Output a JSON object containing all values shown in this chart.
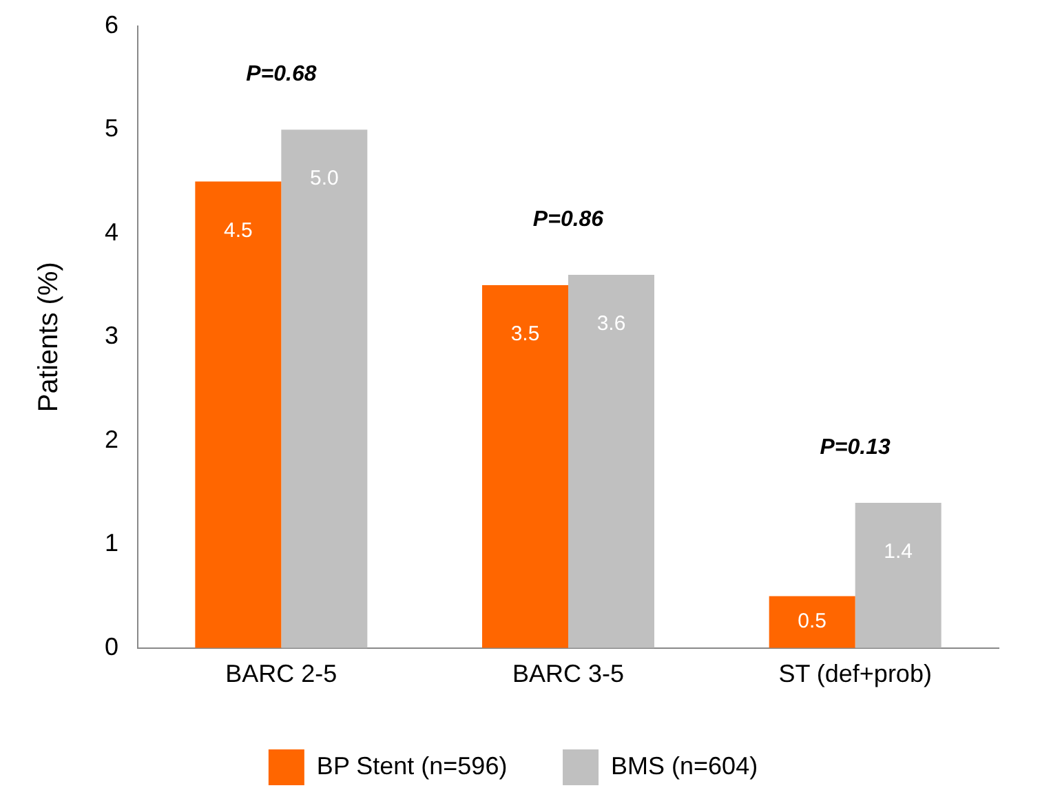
{
  "chart_data": {
    "type": "bar",
    "ylabel": "Patients (%)",
    "categories": [
      "BARC 2-5",
      "BARC 3-5",
      "ST (def+prob)"
    ],
    "series": [
      {
        "name": "BP Stent (n=596)",
        "color": "#ff6600",
        "values": [
          4.5,
          3.5,
          0.5
        ],
        "value_labels": [
          "4.5",
          "3.5",
          "0.5"
        ]
      },
      {
        "name": "BMS (n=604)",
        "color": "#c0c0c0",
        "values": [
          5.0,
          3.6,
          1.4
        ],
        "value_labels": [
          "5.0",
          "3.6",
          "1.4"
        ]
      }
    ],
    "ylim": [
      0,
      6
    ],
    "yticks": [
      0,
      1,
      2,
      3,
      4,
      5,
      6
    ],
    "grid": false,
    "legend": "bottom",
    "annotations": [
      "P=0.68",
      "P=0.86",
      "P=0.13"
    ]
  }
}
